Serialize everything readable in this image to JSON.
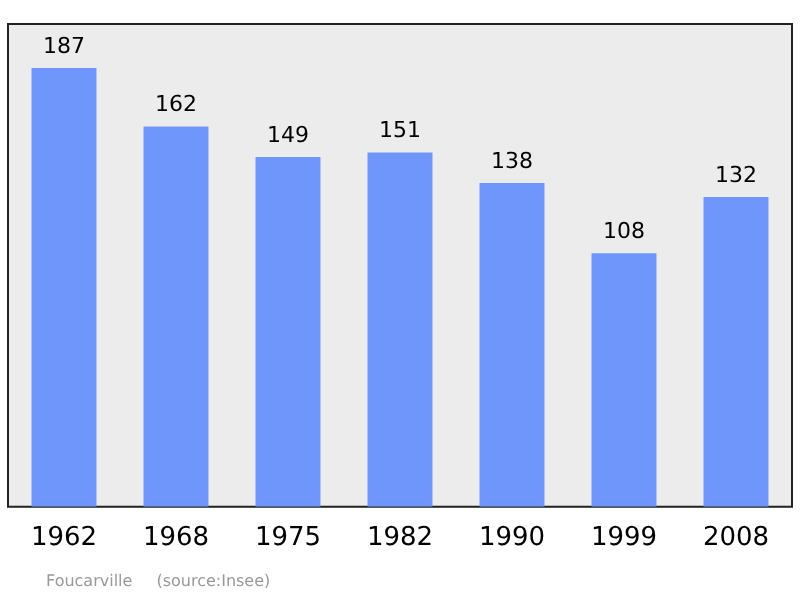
{
  "chart_data": {
    "type": "bar",
    "categories": [
      "1962",
      "1968",
      "1975",
      "1982",
      "1990",
      "1999",
      "2008"
    ],
    "values": [
      187,
      162,
      149,
      151,
      138,
      108,
      132
    ],
    "color": "#6f96fa",
    "data_labels": true,
    "grid": false,
    "legend": false,
    "annotations": [
      "Foucarville",
      "(source:Insee)"
    ]
  }
}
